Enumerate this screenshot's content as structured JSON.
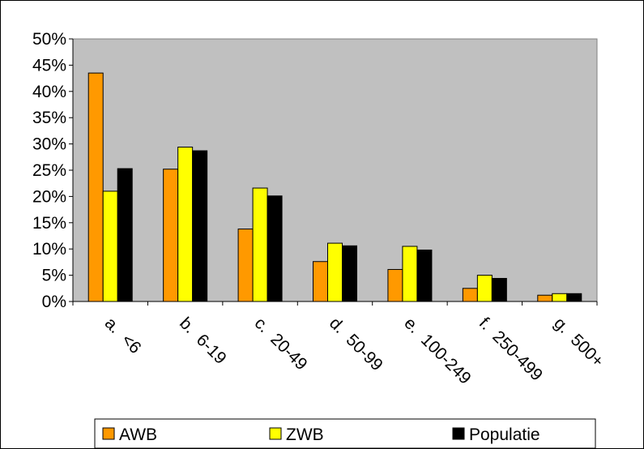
{
  "chart_data": {
    "type": "bar",
    "categories": [
      "a.  <6",
      "b.  6-19",
      "c.  20-49",
      "d.  50-99",
      "e.  100-249",
      "f.  250-499",
      "g.  500+"
    ],
    "series": [
      {
        "name": "AWB",
        "color": "#FF9900",
        "values": [
          43.5,
          25.2,
          13.8,
          7.6,
          6.1,
          2.5,
          1.2
        ]
      },
      {
        "name": "ZWB",
        "color": "#FFFF00",
        "values": [
          21.0,
          29.4,
          21.6,
          11.1,
          10.5,
          5.0,
          1.5
        ]
      },
      {
        "name": "Populatie",
        "color": "#000000",
        "values": [
          25.3,
          28.7,
          20.1,
          10.6,
          9.8,
          4.4,
          1.5
        ]
      }
    ],
    "ylim": [
      0,
      50
    ],
    "yticks": [
      "0%",
      "5%",
      "10%",
      "15%",
      "20%",
      "25%",
      "30%",
      "35%",
      "40%",
      "45%",
      "50%"
    ],
    "plot_background": "#C0C0C0",
    "grid": false,
    "legend_position": "bottom"
  }
}
